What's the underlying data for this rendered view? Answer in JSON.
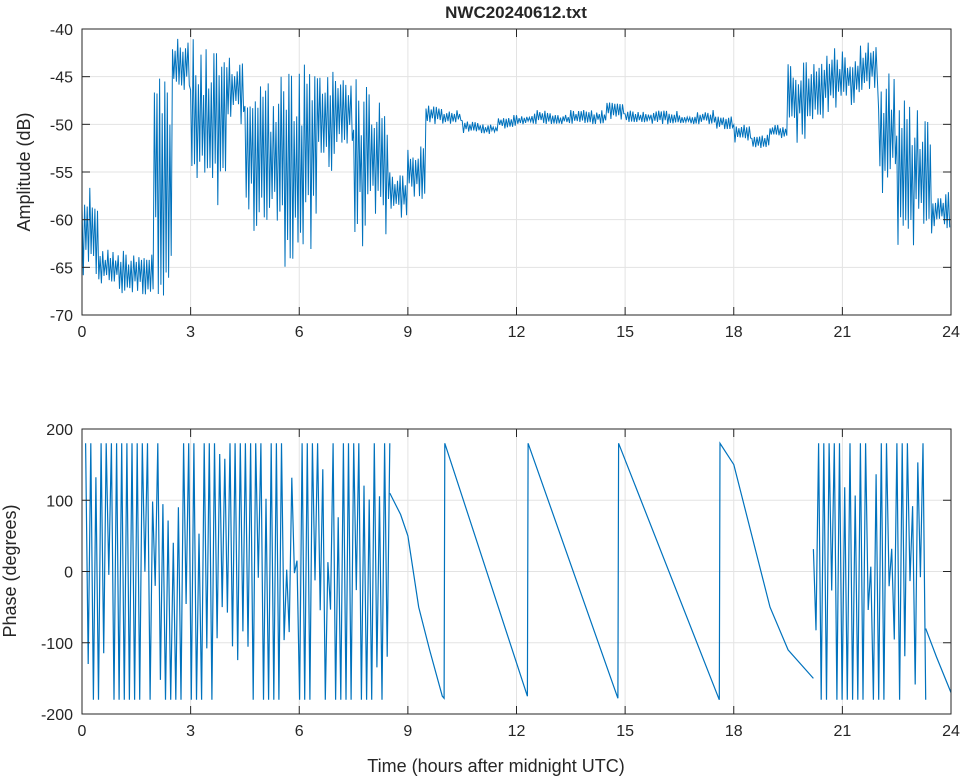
{
  "chart_data": [
    {
      "type": "line",
      "title": "NWC20240612.txt",
      "xlabel": "",
      "ylabel": "Amplitude (dB)",
      "xlim": [
        0,
        24
      ],
      "ylim": [
        -70,
        -40
      ],
      "xticks": [
        0,
        3,
        6,
        9,
        12,
        15,
        18,
        21,
        24
      ],
      "yticks": [
        -70,
        -65,
        -60,
        -55,
        -50,
        -45,
        -40
      ],
      "grid": true,
      "color": "#0072BD",
      "bin_hours": 0.5,
      "envelope_min_max": [
        [
          -67,
          -56
        ],
        [
          -67,
          -63
        ],
        [
          -68,
          -63
        ],
        [
          -68,
          -63
        ],
        [
          -68,
          -43
        ],
        [
          -47,
          -41
        ],
        [
          -58,
          -41
        ],
        [
          -60,
          -42
        ],
        [
          -50,
          -43
        ],
        [
          -62,
          -44
        ],
        [
          -62,
          -45
        ],
        [
          -65,
          -44
        ],
        [
          -65,
          -43
        ],
        [
          -55,
          -44
        ],
        [
          -53,
          -44
        ],
        [
          -63,
          -45
        ],
        [
          -62,
          -46
        ],
        [
          -60,
          -55
        ],
        [
          -58,
          -52
        ],
        [
          -50,
          -48
        ],
        [
          -50,
          -48.5
        ],
        [
          -51,
          -49.5
        ],
        [
          -51,
          -50
        ],
        [
          -50.5,
          -49
        ],
        [
          -50,
          -49
        ],
        [
          -50,
          -48.5
        ],
        [
          -50,
          -49
        ],
        [
          -50,
          -48.5
        ],
        [
          -50,
          -48.5
        ],
        [
          -49.5,
          -47.5
        ],
        [
          -50,
          -48.5
        ],
        [
          -50,
          -48.5
        ],
        [
          -50,
          -48.5
        ],
        [
          -50,
          -49
        ],
        [
          -50,
          -48.5
        ],
        [
          -50.5,
          -49
        ],
        [
          -52,
          -50
        ],
        [
          -52.5,
          -51
        ],
        [
          -51.5,
          -50
        ],
        [
          -52,
          -43
        ],
        [
          -50,
          -43
        ],
        [
          -49,
          -42
        ],
        [
          -48,
          -42
        ],
        [
          -47,
          -41
        ],
        [
          -58,
          -44
        ],
        [
          -63,
          -47
        ],
        [
          -62,
          -48
        ],
        [
          -61,
          -57
        ]
      ]
    },
    {
      "type": "line",
      "title": "",
      "xlabel": "Time (hours after midnight UTC)",
      "ylabel": "Phase (degrees)",
      "xlim": [
        0,
        24
      ],
      "ylim": [
        -200,
        200
      ],
      "xticks": [
        0,
        3,
        6,
        9,
        12,
        15,
        18,
        21,
        24
      ],
      "yticks": [
        -200,
        -100,
        0,
        100,
        200
      ],
      "grid": true,
      "color": "#0072BD",
      "segments": [
        {
          "kind": "wrapping-noise",
          "x0": 0.1,
          "x1": 8.5,
          "min": -180,
          "max": 180
        },
        {
          "kind": "line",
          "points": [
            [
              8.5,
              110
            ],
            [
              8.8,
              80
            ],
            [
              9.0,
              50
            ],
            [
              9.3,
              -50
            ],
            [
              9.6,
              -110
            ],
            [
              9.95,
              -175
            ],
            [
              10.0,
              -178
            ],
            [
              10.02,
              180
            ],
            [
              12.3,
              -175
            ],
            [
              12.32,
              180
            ],
            [
              14.8,
              -178
            ],
            [
              14.82,
              180
            ],
            [
              17.6,
              -180
            ],
            [
              17.62,
              180
            ],
            [
              18.0,
              150
            ],
            [
              19.0,
              -50
            ],
            [
              19.5,
              -110
            ],
            [
              20.2,
              -150
            ]
          ]
        },
        {
          "kind": "wrapping-noise",
          "x0": 20.2,
          "x1": 23.3,
          "min": -180,
          "max": 180
        },
        {
          "kind": "line",
          "points": [
            [
              23.3,
              -80
            ],
            [
              23.6,
              -120
            ],
            [
              24.0,
              -170
            ]
          ]
        }
      ]
    }
  ]
}
